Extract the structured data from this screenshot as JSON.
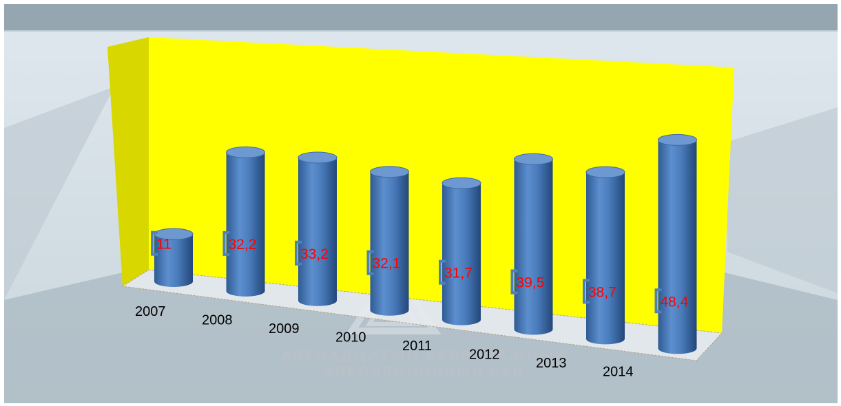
{
  "watermark": {
    "line1": "АВЕНАДЦАТЫЙ АРБИТРАЖНЫЙ",
    "line2": "АПЕЛЛЯЦИОННЫЙ СУД"
  },
  "colors": {
    "background": "#d9e3e9",
    "header_band": "#95a6b0",
    "wall": "#ffff00",
    "wall_side": "#d8d800",
    "bar": "#4f81bd",
    "bar_top": "#6e98d0",
    "value_label": "#ff0000",
    "label_bracket": "#4f81bd"
  },
  "chart_data": {
    "type": "bar",
    "style": "3d-cylinder",
    "categories": [
      "2007",
      "2008",
      "2009",
      "2010",
      "2011",
      "2012",
      "2013",
      "2014"
    ],
    "values": [
      11,
      32.2,
      33.2,
      32.1,
      31.7,
      39.5,
      38.7,
      48.4
    ],
    "value_labels": [
      "11",
      "32,2",
      "33,2",
      "32,1",
      "31,7",
      "39,5",
      "38,7",
      "48,4"
    ],
    "title": "",
    "xlabel": "",
    "ylabel": "",
    "ylim": [
      0,
      50
    ],
    "grid": false,
    "legend": "none"
  }
}
